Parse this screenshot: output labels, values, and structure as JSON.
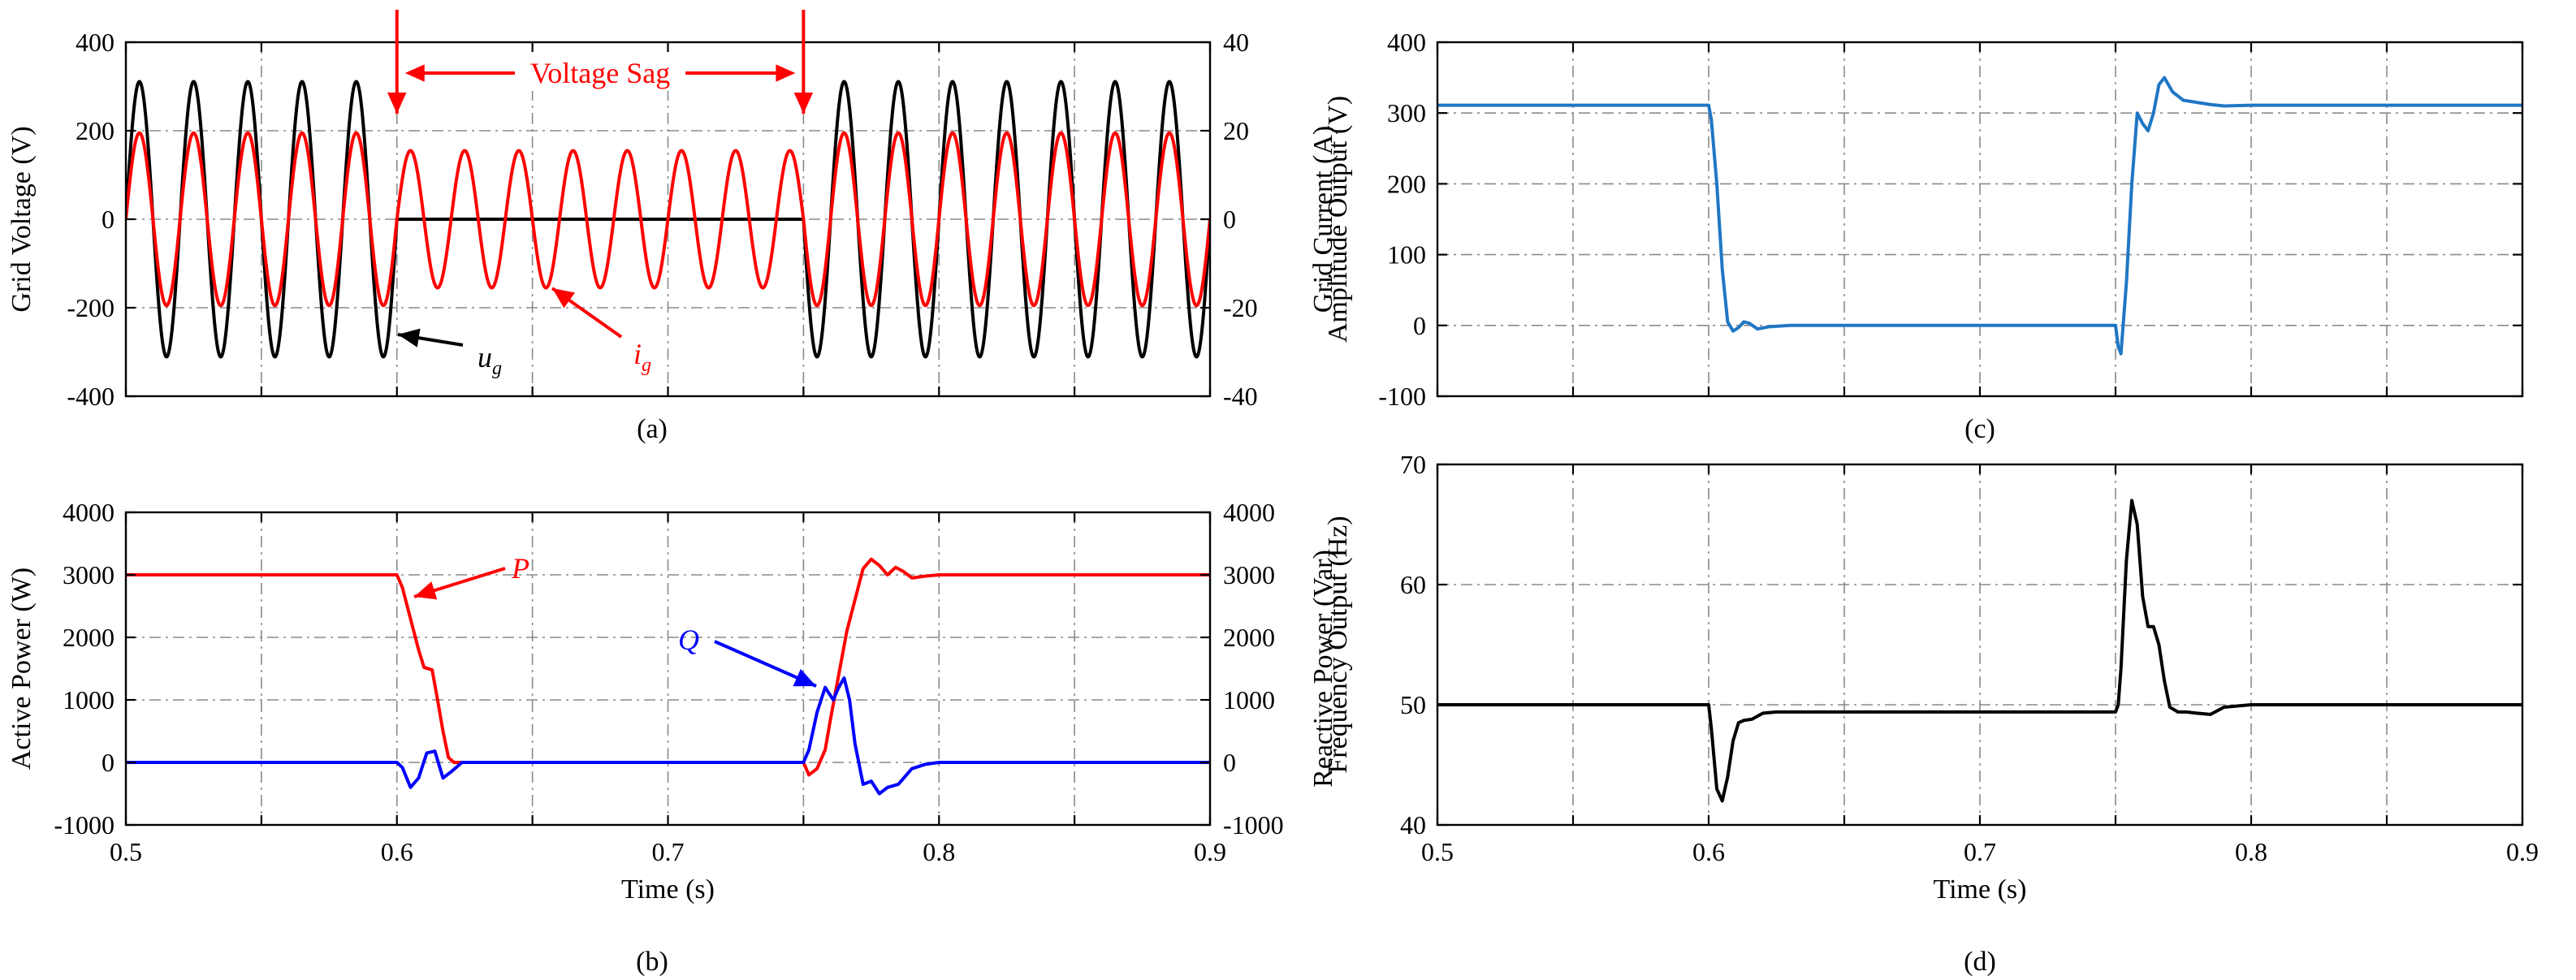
{
  "figure": {
    "panel_labels": [
      "(a)",
      "(b)",
      "(c)",
      "(d)"
    ]
  },
  "chart_data": [
    {
      "id": "a",
      "type": "line",
      "label": "(a)",
      "title": "",
      "xlim": [
        0.5,
        0.9
      ],
      "xticks": [
        0.5,
        0.55,
        0.6,
        0.65,
        0.7,
        0.75,
        0.8,
        0.85,
        0.9
      ],
      "xtick_labels": [
        "",
        "",
        "",
        "",
        "",
        "",
        "",
        "",
        ""
      ],
      "xlabel": "",
      "ylabel": "Grid Voltage (V)",
      "ylim": [
        -400,
        400
      ],
      "yticks": [
        -400,
        -200,
        0,
        200,
        400
      ],
      "ytick_labels": [
        "-400",
        "-200",
        "0",
        "200",
        "400"
      ],
      "y2label": "Grid Current (A)",
      "y2lim": [
        -40,
        40
      ],
      "y2ticks": [
        -40,
        -20,
        0,
        20,
        40
      ],
      "y2tick_labels": [
        "-40",
        "-20",
        "0",
        "20",
        "40"
      ],
      "grid": true,
      "series": [
        {
          "name": "u_g",
          "axis": "left",
          "color": "#000000",
          "kind": "sine",
          "frequency_hz": 50,
          "segments": [
            {
              "t0": 0.5,
              "t1": 0.6,
              "amplitude": 311
            },
            {
              "t0": 0.6,
              "t1": 0.75,
              "amplitude": 0
            },
            {
              "t0": 0.75,
              "t1": 0.9,
              "amplitude": 311
            }
          ]
        },
        {
          "name": "i_g",
          "axis": "right",
          "color": "#ff0000",
          "kind": "sine",
          "frequency_hz": 50,
          "segments": [
            {
              "t0": 0.5,
              "t1": 0.6,
              "amplitude": 19.5
            },
            {
              "t0": 0.6,
              "t1": 0.75,
              "amplitude": 15.5
            },
            {
              "t0": 0.75,
              "t1": 0.9,
              "amplitude": 19.5
            }
          ]
        }
      ],
      "annotations": {
        "sag_label": "Voltage Sag",
        "sag_start": 0.6,
        "sag_end": 0.75,
        "ug_base": "u",
        "ug_sub": "g",
        "ig_base": "i",
        "ig_sub": "g"
      }
    },
    {
      "id": "b",
      "type": "line",
      "label": "(b)",
      "title": "",
      "xlim": [
        0.5,
        0.9
      ],
      "xticks": [
        0.5,
        0.55,
        0.6,
        0.65,
        0.7,
        0.75,
        0.8,
        0.85,
        0.9
      ],
      "xtick_labels": [
        "0.5",
        "",
        "0.6",
        "",
        "0.7",
        "",
        "0.8",
        "",
        "0.9"
      ],
      "xlabel": "Time (s)",
      "ylabel": "Active Power (W)",
      "ylim": [
        -1000,
        4000
      ],
      "yticks": [
        -1000,
        0,
        1000,
        2000,
        3000,
        4000
      ],
      "ytick_labels": [
        "-1000",
        "0",
        "1000",
        "2000",
        "3000",
        "4000"
      ],
      "y2label": "Reactive Power (Var)",
      "y2lim": [
        -1000,
        4000
      ],
      "y2ticks": [
        -1000,
        0,
        1000,
        2000,
        3000,
        4000
      ],
      "y2tick_labels": [
        "-1000",
        "0",
        "1000",
        "2000",
        "3000",
        "4000"
      ],
      "grid": true,
      "series": [
        {
          "name": "P",
          "axis": "left",
          "color": "#ff0000",
          "x": [
            0.5,
            0.6,
            0.602,
            0.605,
            0.608,
            0.61,
            0.613,
            0.615,
            0.617,
            0.619,
            0.621,
            0.75,
            0.752,
            0.755,
            0.758,
            0.76,
            0.763,
            0.766,
            0.769,
            0.772,
            0.775,
            0.778,
            0.781,
            0.784,
            0.787,
            0.79,
            0.795,
            0.8,
            0.81,
            0.9
          ],
          "y": [
            3000,
            3000,
            2800,
            2300,
            1800,
            1520,
            1480,
            1000,
            500,
            80,
            0,
            0,
            -200,
            -100,
            200,
            700,
            1400,
            2100,
            2600,
            3100,
            3250,
            3150,
            3000,
            3120,
            3050,
            2950,
            2980,
            3000,
            3000,
            3000
          ]
        },
        {
          "name": "Q",
          "axis": "right",
          "color": "#0000ff",
          "x": [
            0.5,
            0.6,
            0.602,
            0.605,
            0.608,
            0.611,
            0.614,
            0.617,
            0.62,
            0.624,
            0.628,
            0.75,
            0.752,
            0.755,
            0.758,
            0.761,
            0.763,
            0.765,
            0.767,
            0.769,
            0.772,
            0.775,
            0.778,
            0.781,
            0.785,
            0.79,
            0.795,
            0.8,
            0.9
          ],
          "y": [
            0,
            0,
            -80,
            -400,
            -250,
            150,
            180,
            -250,
            -150,
            0,
            0,
            0,
            200,
            800,
            1200,
            1000,
            1200,
            1350,
            1000,
            300,
            -350,
            -300,
            -500,
            -400,
            -350,
            -100,
            -30,
            0,
            0
          ]
        }
      ],
      "annotations": {
        "p_label": "P",
        "q_label": "Q"
      }
    },
    {
      "id": "c",
      "type": "line",
      "label": "(c)",
      "title": "",
      "xlim": [
        0.5,
        0.9
      ],
      "xticks": [
        0.5,
        0.55,
        0.6,
        0.65,
        0.7,
        0.75,
        0.8,
        0.85,
        0.9
      ],
      "xtick_labels": [
        "",
        "",
        "",
        "",
        "",
        "",
        "",
        "",
        ""
      ],
      "xlabel": "",
      "ylabel": "Amplitude Output (V)",
      "ylim": [
        -100,
        400
      ],
      "yticks": [
        -100,
        0,
        100,
        200,
        300,
        400
      ],
      "ytick_labels": [
        "-100",
        "0",
        "100",
        "200",
        "300",
        "400"
      ],
      "grid": true,
      "series": [
        {
          "name": "Amplitude",
          "axis": "left",
          "color": "#1f77c4",
          "x": [
            0.5,
            0.6,
            0.601,
            0.603,
            0.605,
            0.607,
            0.609,
            0.611,
            0.613,
            0.615,
            0.618,
            0.622,
            0.63,
            0.75,
            0.751,
            0.752,
            0.754,
            0.756,
            0.758,
            0.76,
            0.762,
            0.764,
            0.766,
            0.768,
            0.771,
            0.775,
            0.78,
            0.785,
            0.79,
            0.8,
            0.9
          ],
          "y": [
            311,
            311,
            290,
            200,
            80,
            5,
            -8,
            -3,
            5,
            3,
            -5,
            -2,
            0,
            0,
            -30,
            -40,
            60,
            200,
            300,
            285,
            275,
            300,
            340,
            350,
            330,
            318,
            315,
            312,
            310,
            311,
            311
          ]
        }
      ]
    },
    {
      "id": "d",
      "type": "line",
      "label": "(d)",
      "title": "",
      "xlim": [
        0.5,
        0.9
      ],
      "xticks": [
        0.5,
        0.55,
        0.6,
        0.65,
        0.7,
        0.75,
        0.8,
        0.85,
        0.9
      ],
      "xtick_labels": [
        "0.5",
        "",
        "0.6",
        "",
        "0.7",
        "",
        "0.8",
        "",
        "0.9"
      ],
      "xlabel": "Time (s)",
      "ylabel": "Frequency Output (Hz)",
      "ylim": [
        40,
        70
      ],
      "yticks": [
        40,
        50,
        60,
        70
      ],
      "ytick_labels": [
        "40",
        "50",
        "60",
        "70"
      ],
      "grid": true,
      "series": [
        {
          "name": "Frequency",
          "axis": "left",
          "color": "#000000",
          "x": [
            0.5,
            0.6,
            0.601,
            0.603,
            0.605,
            0.607,
            0.609,
            0.611,
            0.613,
            0.616,
            0.62,
            0.625,
            0.75,
            0.751,
            0.752,
            0.754,
            0.756,
            0.758,
            0.76,
            0.762,
            0.764,
            0.766,
            0.768,
            0.77,
            0.773,
            0.776,
            0.78,
            0.785,
            0.79,
            0.8,
            0.9
          ],
          "y": [
            50,
            50,
            48,
            43,
            42,
            44,
            47,
            48.5,
            48.7,
            48.8,
            49.3,
            49.4,
            49.4,
            50,
            53,
            62,
            67,
            65,
            59,
            56.5,
            56.5,
            55,
            52,
            49.8,
            49.4,
            49.4,
            49.3,
            49.2,
            49.8,
            50,
            50
          ]
        }
      ]
    }
  ]
}
